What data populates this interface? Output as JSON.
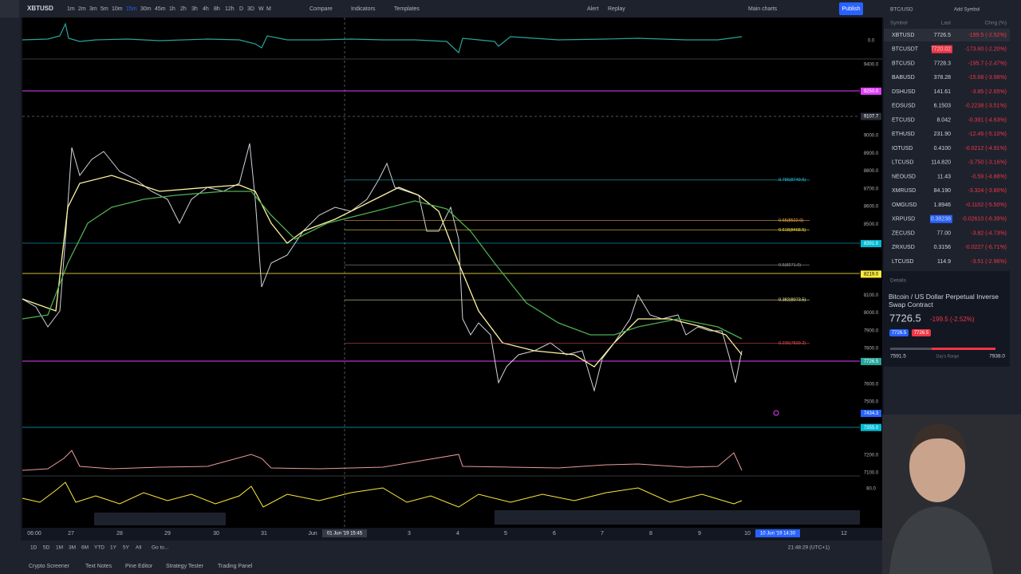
{
  "toolbar": {
    "symbol": "XBTUSD",
    "intervals": [
      "1m",
      "2m",
      "3m",
      "5m",
      "10m",
      "15m",
      "30m",
      "45m",
      "1h",
      "2h",
      "3h",
      "4h",
      "8h",
      "12h",
      "D",
      "3D",
      "W",
      "M"
    ],
    "compare": "Compare",
    "indicators": "Indicators",
    "templates": "Templates",
    "alert": "Alert",
    "replay": "Replay",
    "layout": "Main charts",
    "publish": "Publish"
  },
  "price_axis": {
    "oscillator_top": "0.0",
    "oscillator_bottom": "80.0",
    "labels": [
      "9400.0",
      "9000.0",
      "8900.0",
      "8800.0",
      "8700.0",
      "8600.0",
      "8500.0",
      "8100.0",
      "8000.0",
      "7900.0",
      "7800.0",
      "7600.0",
      "7500.0",
      "7200.0",
      "7100.0"
    ],
    "tags": [
      {
        "text": "9250.0",
        "price": 9250.0,
        "color": "#e040fb"
      },
      {
        "text": "9107.7",
        "price": 9107.7,
        "color": "#2a2e39"
      },
      {
        "text": "8391.0",
        "price": 8391.0,
        "color": "#00bcd4"
      },
      {
        "text": "8219.0",
        "price": 8219.0,
        "color": "#ffeb3b"
      },
      {
        "text": "7727.0",
        "price": 7727.0,
        "color": "#e040fb"
      },
      {
        "text": "7726.5",
        "price": 7726.5,
        "color": "#26a69a"
      },
      {
        "text": "7434.3",
        "price": 7434.3,
        "color": "#2962ff"
      },
      {
        "text": "7355.0",
        "price": 7355.0,
        "color": "#00bcd4"
      }
    ]
  },
  "fib_levels": [
    {
      "label": "0.786(8749.6)",
      "price": 8749.6
    },
    {
      "label": "0.65(8522.0)",
      "price": 8522.0
    },
    {
      "label": "0.618(8468.5)",
      "price": 8468.5
    },
    {
      "label": "0.5(8271.0)",
      "price": 8271.0
    },
    {
      "label": "0.382(8073.5)",
      "price": 8073.5
    },
    {
      "label": "0.236(7829.2)",
      "price": 7829.2
    }
  ],
  "time_axis": [
    "06:00",
    "27",
    "28",
    "29",
    "30",
    "31",
    "Jun",
    "01 Jun '19 15:45",
    "3",
    "4",
    "5",
    "6",
    "7",
    "8",
    "9",
    "10",
    "10 Jun '19 14:30",
    "12"
  ],
  "ranges": [
    "1D",
    "5D",
    "1M",
    "3M",
    "6M",
    "YTD",
    "1Y",
    "5Y",
    "All",
    "Go to..."
  ],
  "clock": "21:48:29 (UTC+1)",
  "bottom_tabs": [
    "Crypto Screener",
    "Text Notes",
    "Pine Editor",
    "Strategy Tester",
    "Trading Panel"
  ],
  "watchlist": {
    "title": "BTC/USD",
    "add": "Add Symbol",
    "columns": [
      "Symbol",
      "Last",
      "Chng (%)"
    ],
    "rows": [
      [
        "XBTUSD",
        "7726.5",
        "-199.5 (-2.52%)"
      ],
      [
        "BTCUSDT",
        "7720.02",
        "-173.60 (-2.20%)"
      ],
      [
        "BTCUSD",
        "7728.3",
        "-195.7 (-2.47%)"
      ],
      [
        "BABUSD",
        "378.28",
        "-15.68 (-3.98%)"
      ],
      [
        "DSHUSD",
        "141.61",
        "-3.85 (-2.65%)"
      ],
      [
        "EOSUSD",
        "6.1503",
        "-0.2238 (-3.51%)"
      ],
      [
        "ETCUSD",
        "8.042",
        "-0.391 (-4.63%)"
      ],
      [
        "ETHUSD",
        "231.90",
        "-12.46 (-5.10%)"
      ],
      [
        "IOTUSD",
        "0.4100",
        "-0.0212 (-4.91%)"
      ],
      [
        "LTCUSD",
        "114.820",
        "-3.750 (-3.16%)"
      ],
      [
        "NEOUSD",
        "11.43",
        "-0.59 (-4.88%)"
      ],
      [
        "XMRUSD",
        "84.190",
        "-3.324 (-3.80%)"
      ],
      [
        "OMGUSD",
        "1.8946",
        "-0.1102 (-5.50%)"
      ],
      [
        "XRPUSD",
        "0.38238",
        "-0.02610 (-6.39%)"
      ],
      [
        "ZECUSD",
        "77.00",
        "-3.82 (-4.73%)"
      ],
      [
        "ZRXUSD",
        "0.3156",
        "-0.0227 (-6.71%)"
      ],
      [
        "LTCUSD",
        "114.9",
        "-3.51 (-2.96%)"
      ]
    ]
  },
  "details": {
    "title": "Details",
    "name": "Bitcoin / US Dollar Perpetual Inverse Swap Contract",
    "price": "7726.5",
    "change": "-199.5 (-2.52%)",
    "bid": "7726.5",
    "ask": "7726.5",
    "low": "7591.5",
    "range_label": "Day's Range",
    "high": "7938.0"
  }
}
